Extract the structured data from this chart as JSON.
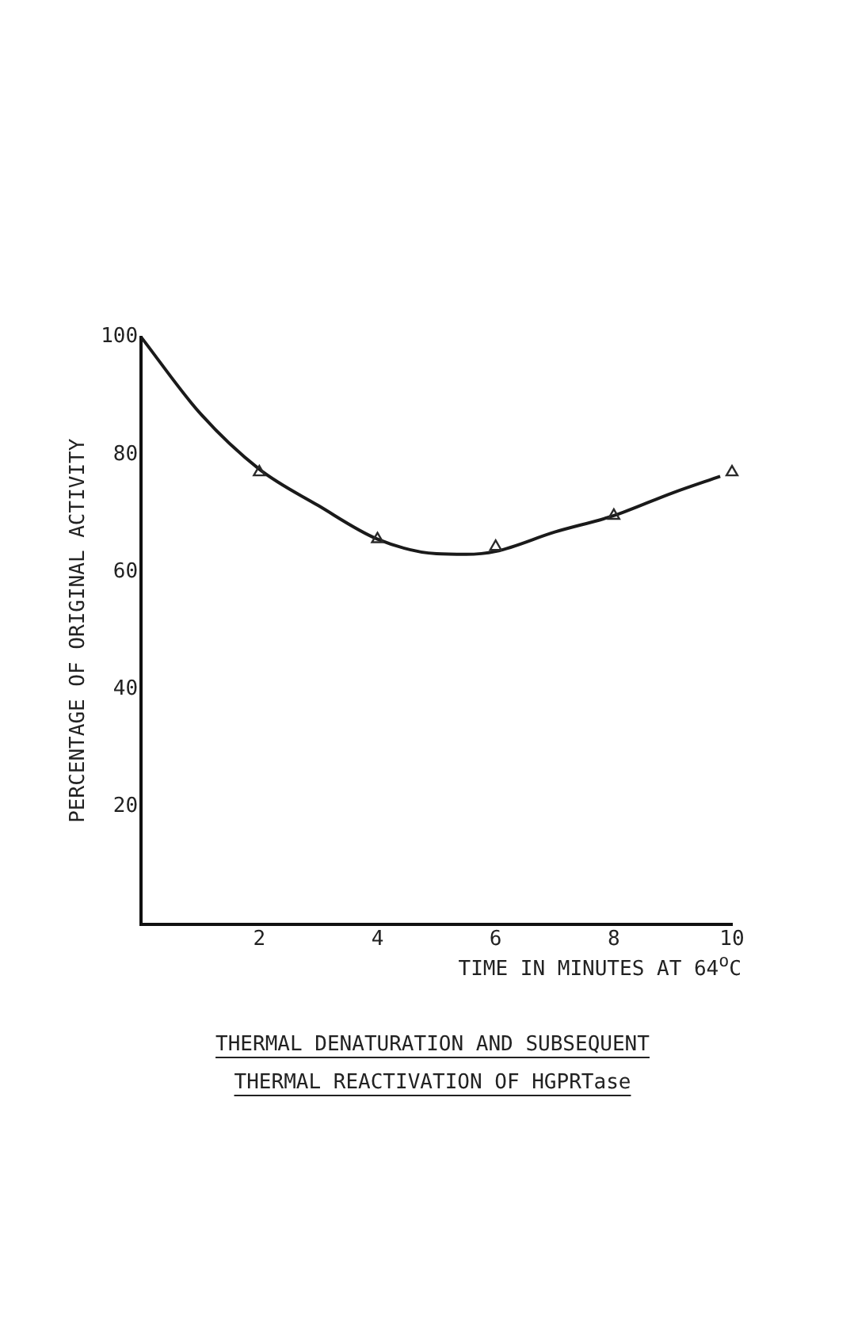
{
  "chart_data": {
    "type": "scatter",
    "title": "THERMAL DENATURATION AND SUBSEQUENT THERMAL REACTIVATION OF HGPRTase",
    "xlabel": "TIME IN MINUTES AT 64$^{o}$C",
    "ylabel": "PERCENTAGE OF ORIGINAL ACTIVITY",
    "xlim": [
      0,
      10
    ],
    "ylim": [
      0,
      100
    ],
    "xticks": [
      2,
      4,
      6,
      8,
      10
    ],
    "yticks": [
      20,
      40,
      60,
      80,
      100
    ],
    "grid": false,
    "legend": false,
    "series": [
      {
        "color": "#2a2a2a",
        "marker": "triangle",
        "x": [
          2,
          4,
          6,
          8,
          10
        ],
        "values": [
          77,
          65.6,
          64.3,
          69.6,
          77
        ]
      },
      {
        "type": "line",
        "color": "#1a1a1a",
        "marker": "none",
        "x": [
          0,
          1,
          2,
          3,
          4,
          5,
          5.5,
          6,
          7,
          8,
          9,
          9.8
        ],
        "values": [
          100,
          87,
          77.5,
          71.3,
          65.6,
          63.1,
          63,
          63.5,
          66.8,
          69.6,
          73.5,
          76.3
        ]
      }
    ]
  }
}
